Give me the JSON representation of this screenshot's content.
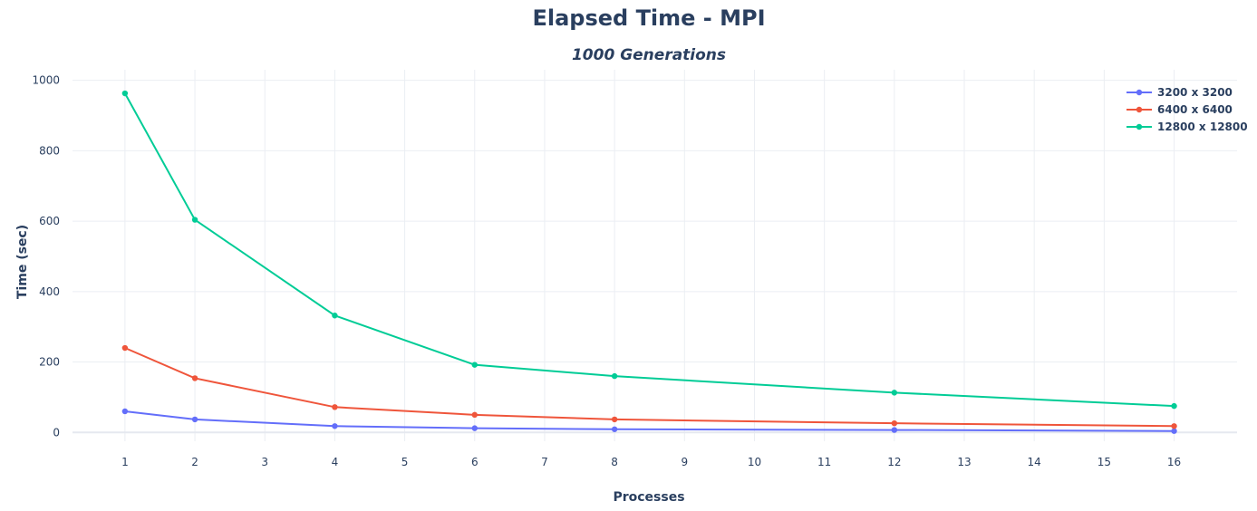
{
  "chart_data": {
    "type": "line",
    "title": "Elapsed Time - MPI",
    "subtitle": "1000 Generations",
    "xlabel": "Processes",
    "ylabel": "Time (sec)",
    "xlim": [
      0.25,
      16.9
    ],
    "ylim": [
      -25,
      1030
    ],
    "x_ticks": [
      1,
      2,
      3,
      4,
      5,
      6,
      7,
      8,
      9,
      10,
      11,
      12,
      13,
      14,
      15,
      16
    ],
    "y_ticks": [
      0,
      200,
      400,
      600,
      800,
      1000
    ],
    "grid": true,
    "legend_position": "top-right",
    "x": [
      1,
      2,
      4,
      6,
      8,
      12,
      16
    ],
    "series": [
      {
        "name": "3200 x 3200",
        "color": "#636efa",
        "values": [
          60,
          37,
          18,
          12,
          9,
          7,
          4
        ]
      },
      {
        "name": "6400 x 6400",
        "color": "#ef553b",
        "values": [
          240,
          154,
          72,
          50,
          37,
          26,
          18
        ]
      },
      {
        "name": "12800 x 12800",
        "color": "#00cc96",
        "values": [
          963,
          604,
          332,
          192,
          160,
          113,
          75
        ]
      }
    ]
  }
}
